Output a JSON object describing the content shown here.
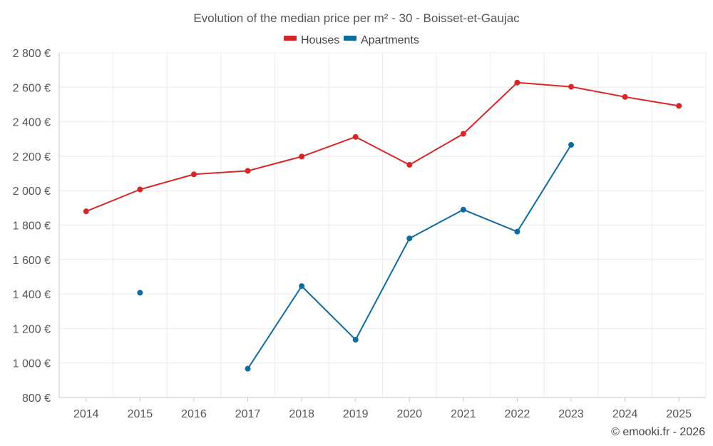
{
  "chart_data": {
    "type": "line",
    "title": "Evolution of the median price per m² - 30 - Boisset-et-Gaujac",
    "xlabel": "",
    "ylabel": "",
    "categories": [
      "2014",
      "2015",
      "2016",
      "2017",
      "2018",
      "2019",
      "2020",
      "2021",
      "2022",
      "2023",
      "2024",
      "2025"
    ],
    "ylim": [
      800,
      2800
    ],
    "yticks": [
      800,
      1000,
      1200,
      1400,
      1600,
      1800,
      2000,
      2200,
      2400,
      2600,
      2800
    ],
    "ytick_labels": [
      "800 €",
      "1 000 €",
      "1 200 €",
      "1 400 €",
      "1 600 €",
      "1 800 €",
      "2 000 €",
      "2 200 €",
      "2 400 €",
      "2 600 €",
      "2 800 €"
    ],
    "grid": true,
    "legend_position": "top-center",
    "series": [
      {
        "name": "Houses",
        "color": "#d62728",
        "values": [
          1880,
          2007,
          2095,
          2115,
          2198,
          2312,
          2150,
          2330,
          2627,
          2603,
          2544,
          2492
        ]
      },
      {
        "name": "Apartments",
        "color": "#0f6aa0",
        "values": [
          null,
          1408,
          null,
          967,
          1446,
          1135,
          1723,
          1890,
          1762,
          2266,
          null,
          null
        ]
      }
    ]
  },
  "credit": "© emooki.fr - 2026"
}
